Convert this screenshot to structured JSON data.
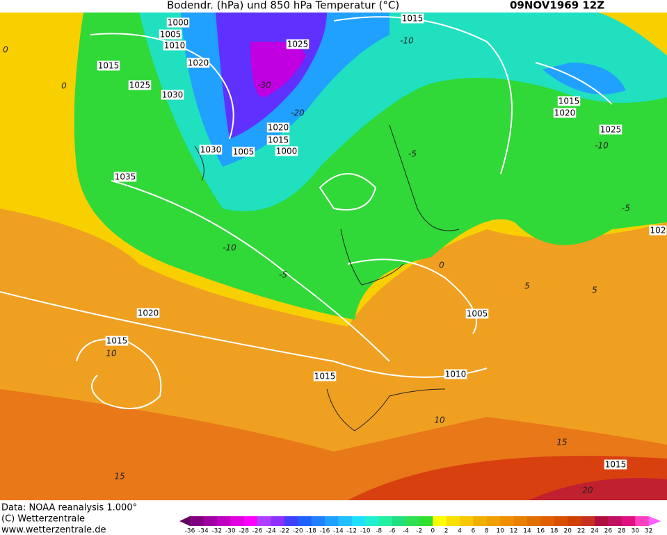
{
  "header": {
    "title": "Bodendr. (hPa) und 850 hPa Temperatur (°C)",
    "date": "09NOV1969 12Z"
  },
  "isobar_labels": [
    "1000",
    "1005",
    "1010",
    "1020",
    "1015",
    "1025",
    "1030",
    "1035",
    "1025",
    "1015",
    "1020",
    "1015",
    "1005",
    "1000",
    "1030",
    "1015",
    "1020",
    "1025",
    "1020",
    "1015",
    "1015",
    "1010",
    "1005",
    "1015",
    "102"
  ],
  "temperature_labels": [
    "0",
    "0",
    "-30",
    "-20",
    "-10",
    "-10",
    "-5",
    "-10",
    "-5",
    "0",
    "-5",
    "5",
    "5",
    "10",
    "10",
    "15",
    "15",
    "20"
  ],
  "footer": {
    "data": "Data: NOAA reanalysis 1.000°",
    "copyright": "(C) Wetterzentrale",
    "url": "www.wetterzentrale.de"
  },
  "colorbar": {
    "ticks": [
      -36,
      -34,
      -32,
      -30,
      -28,
      -26,
      -24,
      -22,
      -20,
      -18,
      -16,
      -14,
      -12,
      -10,
      -8,
      -6,
      -4,
      -2,
      0,
      2,
      4,
      6,
      8,
      10,
      12,
      14,
      16,
      18,
      20,
      22,
      24,
      26,
      28,
      30,
      32
    ],
    "colors": [
      "#800080",
      "#a000a0",
      "#c000c0",
      "#e000e0",
      "#ff00ff",
      "#b040ff",
      "#9030ff",
      "#4040ff",
      "#2060ff",
      "#2080ff",
      "#20a0ff",
      "#20c0ff",
      "#20e0ff",
      "#20f0d0",
      "#20f0a0",
      "#20e080",
      "#30e050",
      "#30e030",
      "#ffff00",
      "#f8e000",
      "#f8c800",
      "#f0b000",
      "#f0a000",
      "#f09000",
      "#e88000",
      "#e07000",
      "#e06000",
      "#d85000",
      "#d04000",
      "#c83020",
      "#b01040",
      "#c01060",
      "#e01080",
      "#ff40c0"
    ],
    "under_color": "#600060",
    "over_color": "#ff60ff"
  }
}
